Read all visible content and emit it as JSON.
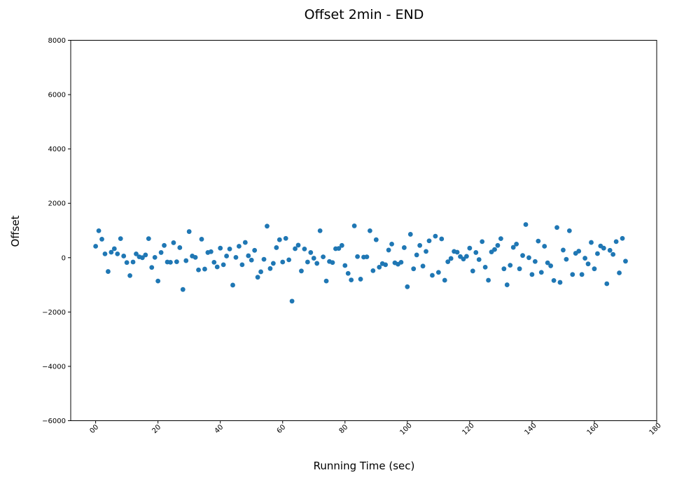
{
  "chart_data": {
    "type": "scatter",
    "title": "Offset 2min - END",
    "xlabel": "Running Time (sec)",
    "ylabel": "Offset",
    "xlim": [
      -8,
      180
    ],
    "ylim": [
      -6000,
      8000
    ],
    "xticks": [
      0,
      20,
      40,
      60,
      80,
      100,
      120,
      140,
      160,
      180
    ],
    "xtick_labels": [
      "00",
      "20",
      "40",
      "60",
      "80",
      "100",
      "120",
      "140",
      "160",
      "180"
    ],
    "yticks": [
      -6000,
      -4000,
      -2000,
      0,
      2000,
      4000,
      6000,
      8000
    ],
    "ytick_labels": [
      "−6000",
      "−4000",
      "−2000",
      "0",
      "2000",
      "4000",
      "6000",
      "8000"
    ],
    "grid": false,
    "point_color": "#1f77b4",
    "series": [
      {
        "x": [
          0,
          1,
          2,
          3,
          4,
          5,
          6,
          7,
          8,
          9,
          10,
          11,
          12,
          13,
          14,
          15,
          16,
          17,
          18,
          19,
          20,
          21,
          22,
          23,
          24,
          25,
          26,
          27,
          28,
          29,
          30,
          31,
          32,
          33,
          34,
          35,
          36,
          37,
          38,
          39,
          40,
          41,
          42,
          43,
          44,
          45,
          46,
          47,
          48,
          49,
          50,
          51,
          52,
          53,
          54,
          55,
          56,
          57,
          58,
          59,
          60,
          61,
          62,
          63,
          64,
          65,
          66,
          67,
          68,
          69,
          70,
          71,
          72,
          73,
          74,
          75,
          76,
          77,
          78,
          79,
          80,
          81,
          82,
          83,
          84,
          85,
          86,
          87,
          88,
          89,
          90,
          91,
          92,
          93,
          94,
          95,
          96,
          97,
          98,
          99,
          100,
          101,
          102,
          103,
          104,
          105,
          106,
          107,
          108,
          109,
          110,
          111,
          112,
          113,
          114,
          115,
          116,
          117,
          118,
          119,
          120,
          121,
          122,
          123,
          124,
          125,
          126,
          127,
          128,
          129,
          130,
          131,
          132,
          133,
          134,
          135,
          136,
          137,
          138,
          139,
          140,
          141,
          142,
          143,
          144,
          145,
          146,
          147,
          148,
          149,
          150,
          151,
          152,
          153,
          154,
          155,
          156,
          157,
          158,
          159,
          160,
          161,
          162,
          163,
          164,
          165,
          166,
          167,
          168,
          169,
          170
        ],
        "y": [
          420,
          990,
          680,
          140,
          -510,
          200,
          330,
          140,
          700,
          60,
          -180,
          -660,
          -160,
          140,
          30,
          0,
          100,
          700,
          -360,
          10,
          -860,
          190,
          450,
          -160,
          -170,
          550,
          -150,
          370,
          -1170,
          -110,
          960,
          60,
          10,
          -450,
          680,
          -420,
          190,
          220,
          -170,
          -340,
          350,
          -260,
          60,
          320,
          -1010,
          10,
          420,
          -260,
          560,
          70,
          -90,
          270,
          -720,
          -520,
          -60,
          1160,
          -400,
          -210,
          370,
          660,
          -160,
          710,
          -80,
          -1600,
          330,
          460,
          -490,
          320,
          -160,
          190,
          -20,
          -210,
          990,
          30,
          -860,
          -140,
          -180,
          330,
          340,
          450,
          -290,
          -580,
          -820,
          1170,
          40,
          -790,
          20,
          30,
          990,
          -480,
          660,
          -350,
          -220,
          -260,
          280,
          500,
          -190,
          -240,
          -170,
          370,
          -1070,
          860,
          -410,
          100,
          450,
          -310,
          230,
          620,
          -650,
          790,
          -540,
          690,
          -830,
          -150,
          -30,
          230,
          200,
          40,
          -50,
          50,
          350,
          -490,
          190,
          -70,
          590,
          -350,
          -830,
          210,
          300,
          450,
          700,
          -410,
          -1000,
          -280,
          380,
          500,
          -410,
          80,
          1220,
          0,
          -620,
          -140,
          610,
          -540,
          420,
          -190,
          -300,
          -840,
          1110,
          -910,
          280,
          -60,
          990,
          -620,
          160,
          240,
          -620,
          -20,
          -230,
          560,
          -410,
          150,
          430,
          350,
          -960,
          270,
          120,
          590,
          -560,
          710,
          -130
        ]
      }
    ]
  }
}
